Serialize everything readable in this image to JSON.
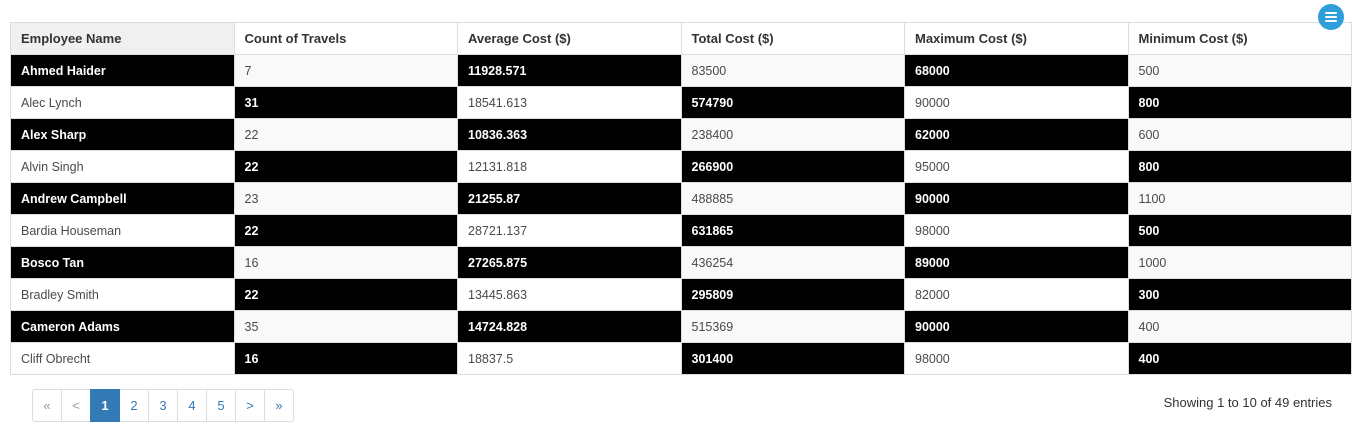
{
  "menu_button": {
    "icon": "hamburger-icon",
    "color": "#2f9fd9"
  },
  "table": {
    "columns": [
      "Employee Name",
      "Count of Travels",
      "Average Cost ($)",
      "Total Cost ($)",
      "Maximum Cost ($)",
      "Minimum Cost ($)"
    ],
    "rows": [
      [
        "Ahmed Haider",
        "7",
        "11928.571",
        "83500",
        "68000",
        "500"
      ],
      [
        "Alec Lynch",
        "31",
        "18541.613",
        "574790",
        "90000",
        "800"
      ],
      [
        "Alex Sharp",
        "22",
        "10836.363",
        "238400",
        "62000",
        "600"
      ],
      [
        "Alvin Singh",
        "22",
        "12131.818",
        "266900",
        "95000",
        "800"
      ],
      [
        "Andrew Campbell",
        "23",
        "21255.87",
        "488885",
        "90000",
        "1100"
      ],
      [
        "Bardia Houseman",
        "22",
        "28721.137",
        "631865",
        "98000",
        "500"
      ],
      [
        "Bosco Tan",
        "16",
        "27265.875",
        "436254",
        "89000",
        "1000"
      ],
      [
        "Bradley Smith",
        "22",
        "13445.863",
        "295809",
        "82000",
        "300"
      ],
      [
        "Cameron Adams",
        "35",
        "14724.828",
        "515369",
        "90000",
        "400"
      ],
      [
        "Cliff Obrecht",
        "16",
        "18837.5",
        "301400",
        "98000",
        "400"
      ]
    ]
  },
  "pagination": {
    "buttons": [
      {
        "label": "«",
        "type": "first",
        "state": "disabled"
      },
      {
        "label": "<",
        "type": "prev",
        "state": "disabled"
      },
      {
        "label": "1",
        "type": "page",
        "state": "active"
      },
      {
        "label": "2",
        "type": "page",
        "state": "normal"
      },
      {
        "label": "3",
        "type": "page",
        "state": "normal"
      },
      {
        "label": "4",
        "type": "page",
        "state": "normal"
      },
      {
        "label": "5",
        "type": "page",
        "state": "normal"
      },
      {
        "label": ">",
        "type": "next",
        "state": "normal"
      },
      {
        "label": "»",
        "type": "last",
        "state": "normal"
      }
    ],
    "info": "Showing 1 to 10 of 49 entries"
  },
  "colors": {
    "accent_blue": "#337ab7",
    "menu_blue": "#2f9fd9",
    "cell_black": "#000000",
    "stripe": "#f9f9f9",
    "border": "#dddddd",
    "disabled_text": "#999999"
  }
}
